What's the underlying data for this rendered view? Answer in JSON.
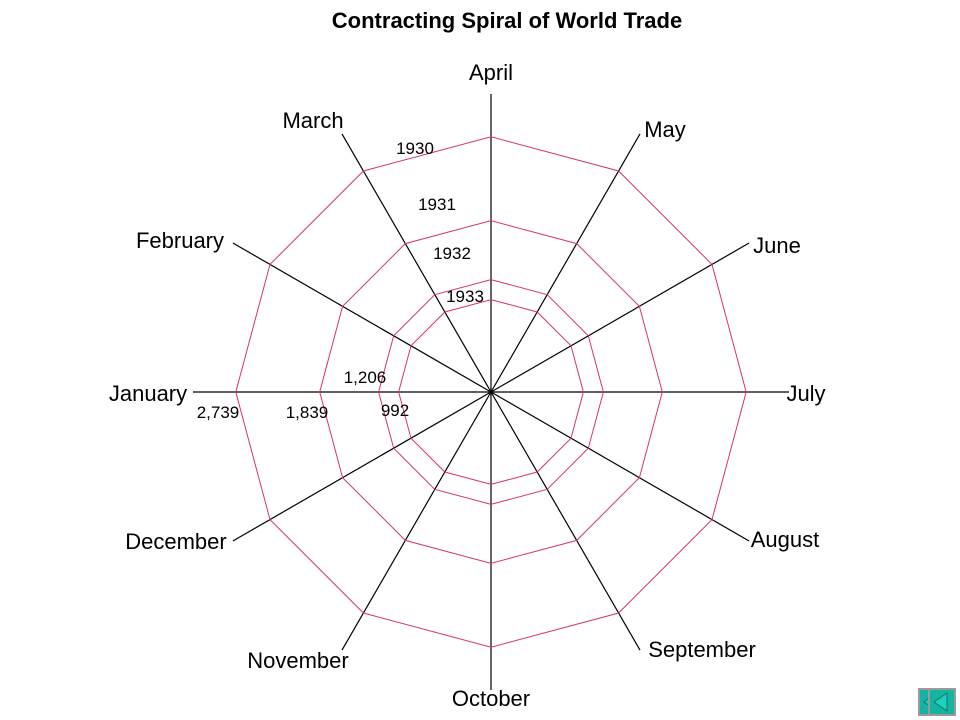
{
  "chart_data": {
    "type": "radar",
    "title": "Contracting Spiral of World Trade",
    "categories": [
      "January",
      "February",
      "March",
      "April",
      "May",
      "June",
      "July",
      "August",
      "September",
      "October",
      "November",
      "December"
    ],
    "series": [
      {
        "name": "1930",
        "values": [
          2739,
          2739,
          2739,
          2739,
          2739,
          2739,
          2739,
          2739,
          2739,
          2739,
          2739,
          2739
        ]
      },
      {
        "name": "1931",
        "values": [
          1839,
          1839,
          1839,
          1839,
          1839,
          1839,
          1839,
          1839,
          1839,
          1839,
          1839,
          1839
        ]
      },
      {
        "name": "1932",
        "values": [
          1206,
          1206,
          1206,
          1206,
          1206,
          1206,
          1206,
          1206,
          1206,
          1206,
          1206,
          1206
        ]
      },
      {
        "name": "1933",
        "values": [
          992,
          992,
          992,
          992,
          992,
          992,
          992,
          992,
          992,
          992,
          992,
          992
        ]
      }
    ],
    "value_labels": [
      "2,739",
      "1,839",
      "1,206",
      "992"
    ],
    "rmax": 3220,
    "line_color": "#d6336c",
    "axis_color": "#000000"
  },
  "nav": {
    "button_color": "#14b3a2",
    "prev_icon": "left-arrow-icon",
    "next_icon": "left-arrow-icon"
  }
}
